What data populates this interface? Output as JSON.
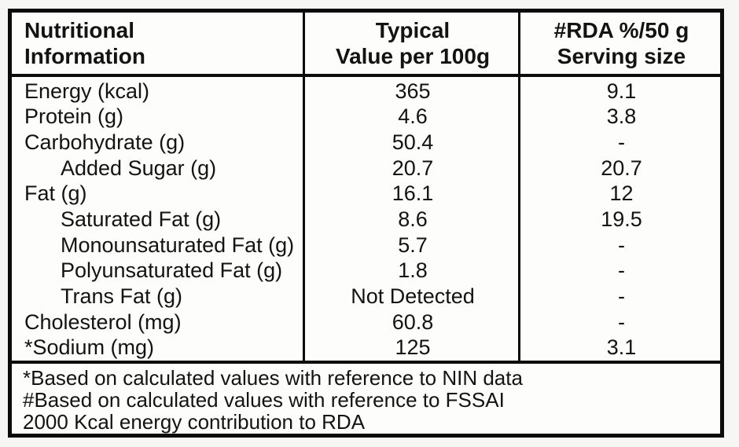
{
  "table": {
    "header": {
      "col1": [
        "Nutritional",
        "Information"
      ],
      "col2": [
        "Typical",
        "Value per 100g"
      ],
      "col3": [
        "#RDA %/50 g",
        "Serving size"
      ]
    },
    "rows": [
      {
        "label": "Energy (kcal)",
        "value": "365",
        "rda": "9.1",
        "indent": false
      },
      {
        "label": "Protein (g)",
        "value": "4.6",
        "rda": "3.8",
        "indent": false
      },
      {
        "label": "Carbohydrate (g)",
        "value": "50.4",
        "rda": "-",
        "indent": false
      },
      {
        "label": "Added Sugar (g)",
        "value": "20.7",
        "rda": "20.7",
        "indent": true
      },
      {
        "label": "Fat (g)",
        "value": "16.1",
        "rda": "12",
        "indent": false
      },
      {
        "label": "Saturated Fat (g)",
        "value": "8.6",
        "rda": "19.5",
        "indent": true
      },
      {
        "label": "Monounsaturated Fat (g)",
        "value": "5.7",
        "rda": "-",
        "indent": true
      },
      {
        "label": "Polyunsaturated Fat (g)",
        "value": "1.8",
        "rda": "-",
        "indent": true
      },
      {
        "label": "Trans Fat (g)",
        "value": "Not Detected",
        "rda": "-",
        "indent": true
      },
      {
        "label": "Cholesterol (mg)",
        "value": "60.8",
        "rda": "-",
        "indent": false
      },
      {
        "label": "*Sodium (mg)",
        "value": "125",
        "rda": "3.1",
        "indent": false
      }
    ],
    "footnotes": [
      "*Based on calculated values with reference to NIN data",
      "#Based on calculated values with reference to FSSAI",
      "2000 Kcal energy contribution to RDA"
    ]
  },
  "colors": {
    "border": "#0c0c0c",
    "text": "#131313",
    "background": "#f6f6f4"
  }
}
